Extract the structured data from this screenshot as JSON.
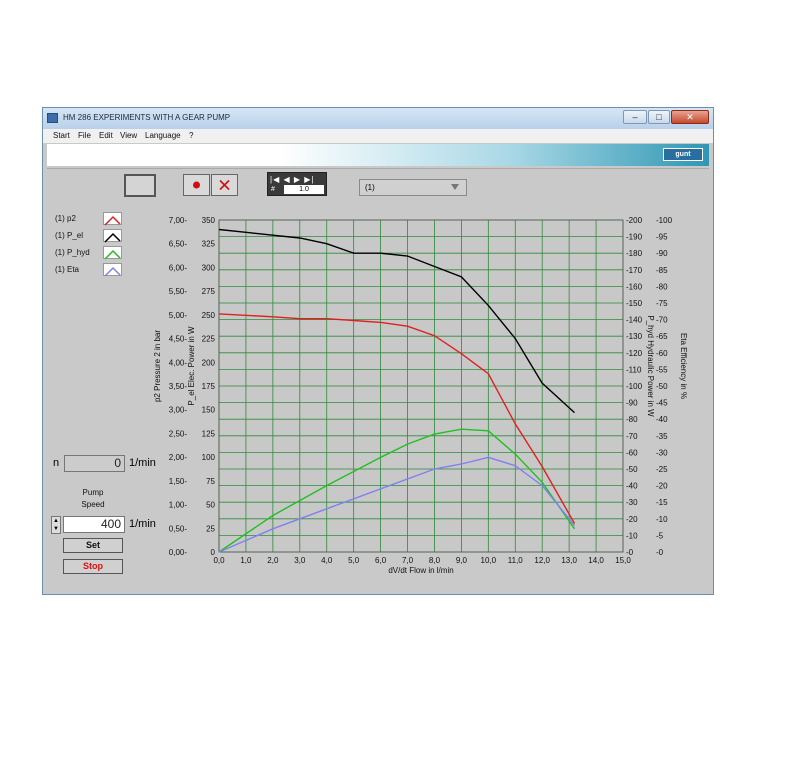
{
  "window": {
    "title": "HM 286 EXPERIMENTS WITH A GEAR PUMP",
    "controls": {
      "minimize": "–",
      "maximize": "□",
      "close": "✕"
    }
  },
  "menu": [
    "Start",
    "File",
    "Edit",
    "View",
    "Language",
    "?"
  ],
  "toolbar": {
    "nav_buttons": "|◀ ◀ ▶ ▶|",
    "nav_hash": "#",
    "nav_value": "1.0",
    "dropdown_value": "(1)"
  },
  "legend": [
    {
      "label": "(1) p2",
      "color": "#e02020"
    },
    {
      "label": "(1) P_el",
      "color": "#000000"
    },
    {
      "label": "(1) P_hyd",
      "color": "#20c020"
    },
    {
      "label": "(1) Eta",
      "color": "#8080f0"
    }
  ],
  "controls": {
    "n_label": "n",
    "n_value": "0",
    "n_unit": "1/min",
    "pump_speed_label1": "Pump",
    "pump_speed_label2": "Speed",
    "pump_speed_value": "400",
    "pump_speed_unit": "1/min",
    "set_label": "Set",
    "stop_label": "Stop"
  },
  "chart_data": {
    "type": "line",
    "xlabel": "dV/dt Flow  in l/min",
    "xlim": [
      0,
      15
    ],
    "x_ticks": [
      "0,0",
      "1,0",
      "2,0",
      "3,0",
      "4,0",
      "5,0",
      "6,0",
      "7,0",
      "8,0",
      "9,0",
      "10,0",
      "11,0",
      "12,0",
      "13,0",
      "14,0",
      "15,0"
    ],
    "axes": {
      "p2": {
        "label": "p2 Pressure 2 in bar",
        "lim": [
          0,
          7
        ],
        "ticks": [
          "0,00-",
          "0,50-",
          "1,00-",
          "1,50-",
          "2,00-",
          "2,50-",
          "3,00-",
          "3,50-",
          "4,00-",
          "4,50-",
          "5,00-",
          "5,50-",
          "6,00-",
          "6,50-",
          "7,00-"
        ]
      },
      "P_el": {
        "label": "P_el Elec. Power in W",
        "lim": [
          0,
          350
        ],
        "ticks": [
          "0",
          "25",
          "50",
          "75",
          "100",
          "125",
          "150",
          "175",
          "200",
          "225",
          "250",
          "275",
          "300",
          "325",
          "350"
        ]
      },
      "P_hyd": {
        "label": "P_hyd Hydraulic Power in W",
        "lim": [
          0,
          200
        ],
        "ticks": [
          "-0",
          "-10",
          "-20",
          "-30",
          "-40",
          "-50",
          "-60",
          "-70",
          "-80",
          "-90",
          "-100",
          "-110",
          "-120",
          "-130",
          "-140",
          "-150",
          "-160",
          "-170",
          "-180",
          "-190",
          "-200"
        ]
      },
      "Eta": {
        "label": "Eta Efficiency in %",
        "lim": [
          0,
          100
        ],
        "ticks": [
          "-0",
          "-5",
          "-10",
          "-15",
          "-20",
          "-25",
          "-30",
          "-35",
          "-40",
          "-45",
          "-50",
          "-55",
          "-60",
          "-65",
          "-70",
          "-75",
          "-80",
          "-85",
          "-90",
          "-95",
          "-100"
        ]
      }
    },
    "grid": true,
    "series": [
      {
        "name": "(1) P_el",
        "axis": "P_el",
        "color": "#000000",
        "x": [
          0,
          1,
          2,
          3,
          4,
          5,
          6,
          7,
          8,
          9,
          10,
          11,
          12,
          13.2
        ],
        "y": [
          340,
          337,
          334,
          331,
          325,
          315,
          315,
          312,
          301,
          290,
          260,
          225,
          178,
          147
        ]
      },
      {
        "name": "(1) p2",
        "axis": "p2",
        "color": "#e02020",
        "x": [
          0,
          1,
          2,
          3,
          4,
          5,
          6,
          7,
          8,
          9,
          10,
          11,
          12,
          13.2
        ],
        "y": [
          5.02,
          4.99,
          4.96,
          4.92,
          4.92,
          4.88,
          4.84,
          4.76,
          4.56,
          4.18,
          3.76,
          2.7,
          1.8,
          0.6
        ]
      },
      {
        "name": "(1) P_hyd",
        "axis": "P_hyd",
        "color": "#20c020",
        "x": [
          0,
          2,
          4,
          6,
          7,
          8,
          9,
          10,
          11,
          12,
          13.2
        ],
        "y": [
          0,
          22,
          40,
          57,
          65,
          71,
          74,
          73,
          59,
          42,
          14
        ]
      },
      {
        "name": "(1) Eta",
        "axis": "Eta",
        "color": "#8080f0",
        "x": [
          0,
          2,
          4,
          6,
          8,
          9,
          10,
          11,
          12,
          13.2
        ],
        "y": [
          0,
          7,
          13,
          19,
          25,
          26.5,
          28.5,
          26,
          20,
          8
        ]
      }
    ]
  }
}
